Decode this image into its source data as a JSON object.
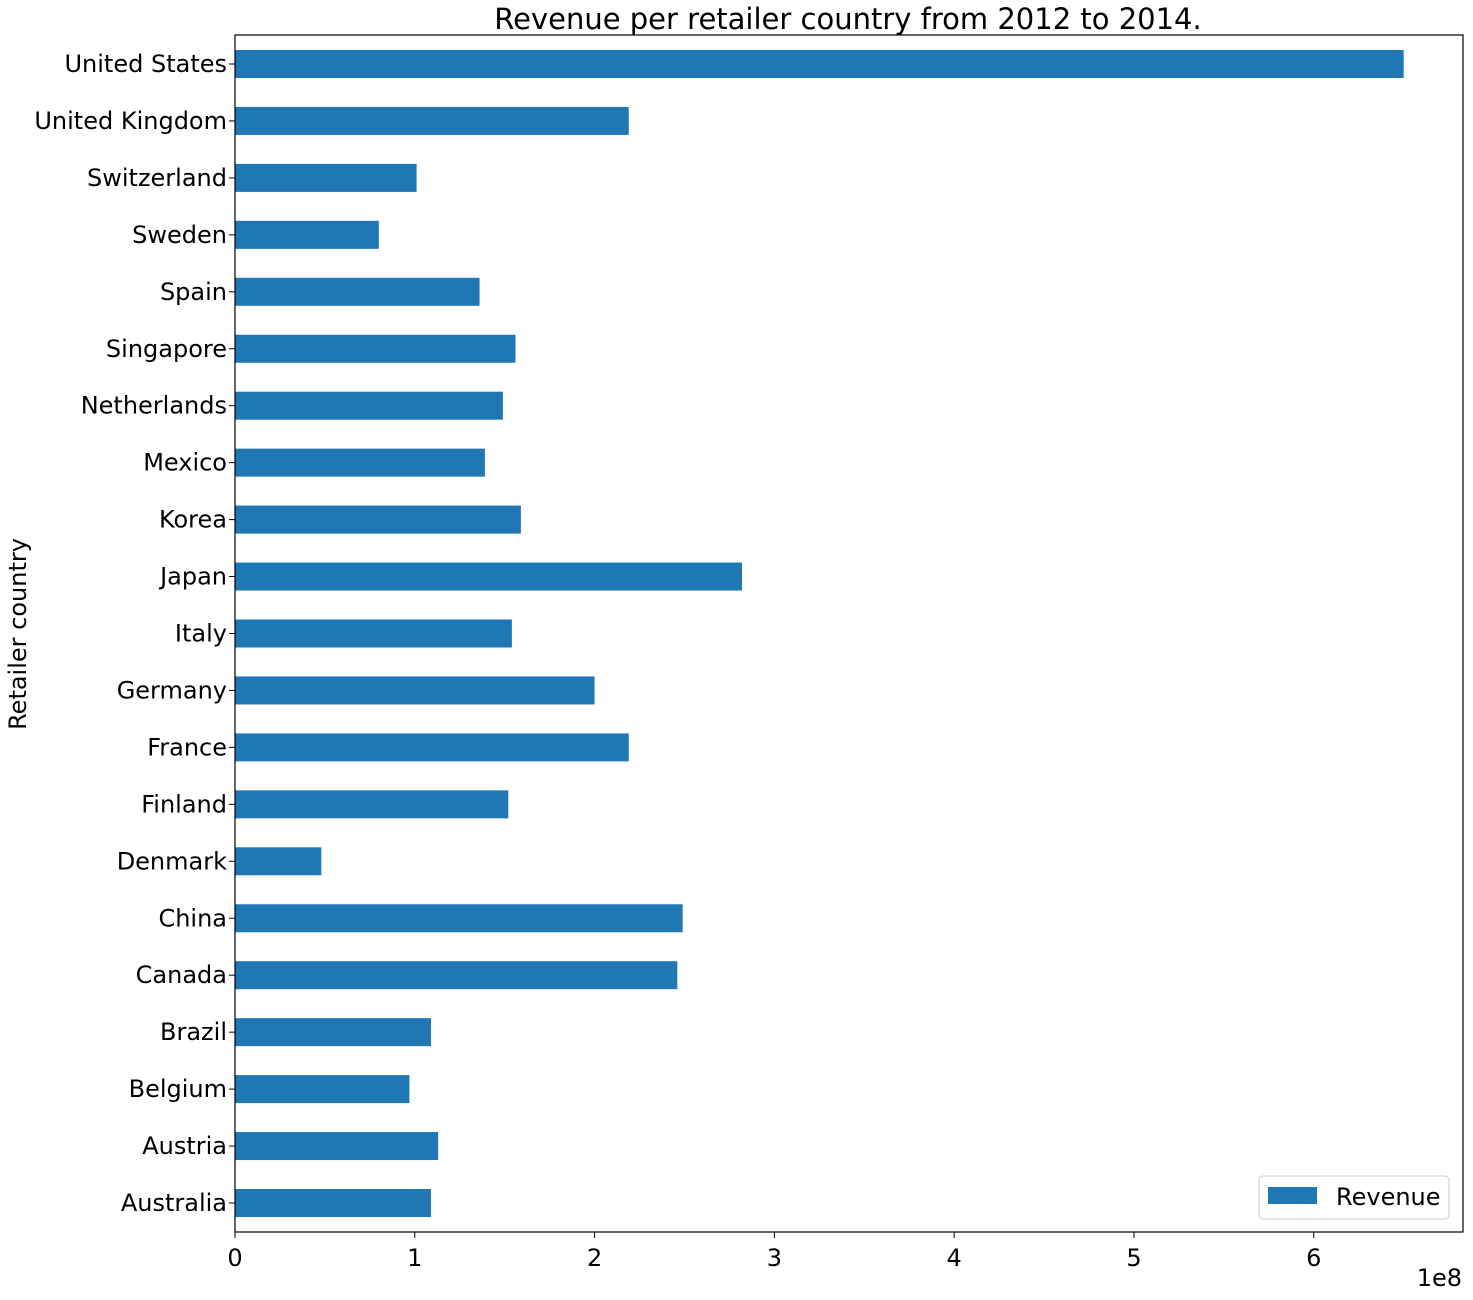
{
  "chart_data": {
    "type": "bar",
    "orientation": "horizontal",
    "title": "Revenue per retailer country from 2012 to 2014.",
    "xlabel": "",
    "ylabel": "Retailer country",
    "x_offset_label": "1e8",
    "xlim": [
      0,
      6.83
    ],
    "x_ticks": [
      0,
      1,
      2,
      3,
      4,
      5,
      6
    ],
    "x_tick_labels": [
      "0",
      "1",
      "2",
      "3",
      "4",
      "5",
      "6"
    ],
    "categories": [
      "Australia",
      "Austria",
      "Belgium",
      "Brazil",
      "Canada",
      "China",
      "Denmark",
      "Finland",
      "France",
      "Germany",
      "Italy",
      "Japan",
      "Korea",
      "Mexico",
      "Netherlands",
      "Singapore",
      "Spain",
      "Sweden",
      "Switzerland",
      "United Kingdom",
      "United States"
    ],
    "series": [
      {
        "name": "Revenue",
        "color": "#1f77b4",
        "values": [
          1.09,
          1.13,
          0.97,
          1.09,
          2.46,
          2.49,
          0.48,
          1.52,
          2.19,
          2.0,
          1.54,
          2.82,
          1.59,
          1.39,
          1.49,
          1.56,
          1.36,
          0.8,
          1.01,
          2.19,
          6.5
        ]
      }
    ],
    "legend_position": "lower-right",
    "grid": false
  }
}
